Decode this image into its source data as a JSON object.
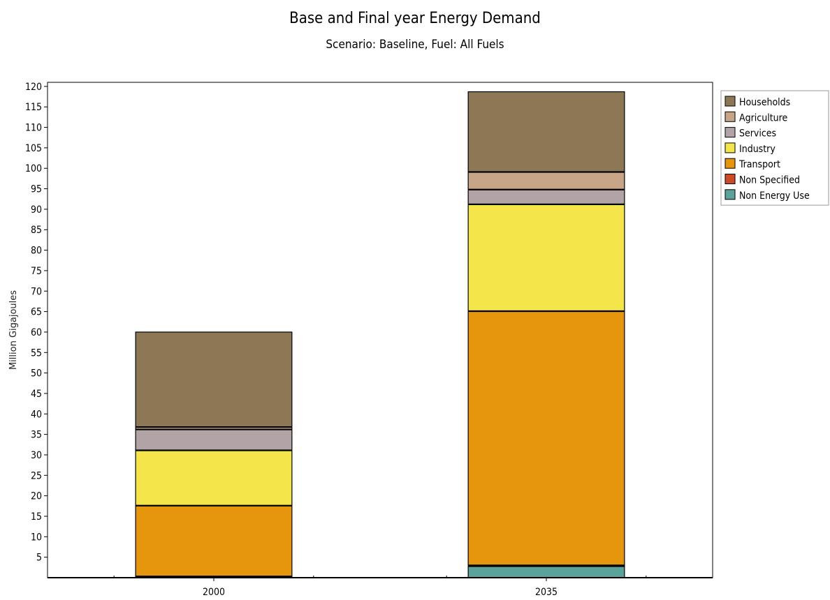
{
  "chart_data": {
    "type": "bar",
    "stacked": true,
    "title": "Base and Final year  Energy Demand",
    "subtitle": "Scenario: Baseline, Fuel: All Fuels",
    "xlabel": "",
    "ylabel": "Million Gigajoules",
    "categories": [
      "2000",
      "2035"
    ],
    "ylim": [
      0,
      121
    ],
    "yticks": [
      5,
      10,
      15,
      20,
      25,
      30,
      35,
      40,
      45,
      50,
      55,
      60,
      65,
      70,
      75,
      80,
      85,
      90,
      95,
      100,
      105,
      110,
      115,
      120
    ],
    "series": [
      {
        "name": "Non Energy Use",
        "color": "#5ba39a",
        "values": [
          0,
          2.8
        ]
      },
      {
        "name": "Non Specified",
        "color": "#cc4a25",
        "values": [
          0.3,
          0.2
        ]
      },
      {
        "name": "Transport",
        "color": "#e5960c",
        "values": [
          17.3,
          62.1
        ]
      },
      {
        "name": "Industry",
        "color": "#f3e54a",
        "values": [
          13.5,
          26.1
        ]
      },
      {
        "name": "Services",
        "color": "#b2a4a6",
        "values": [
          5.1,
          3.6
        ]
      },
      {
        "name": "Agriculture",
        "color": "#c8a587",
        "values": [
          0.6,
          4.3
        ]
      },
      {
        "name": "Households",
        "color": "#8c7854",
        "values": [
          23.2,
          19.6
        ]
      }
    ],
    "legend_order": [
      "Households",
      "Agriculture",
      "Services",
      "Industry",
      "Transport",
      "Non Specified",
      "Non Energy Use"
    ],
    "legend_position": "top-right",
    "grid": false
  }
}
